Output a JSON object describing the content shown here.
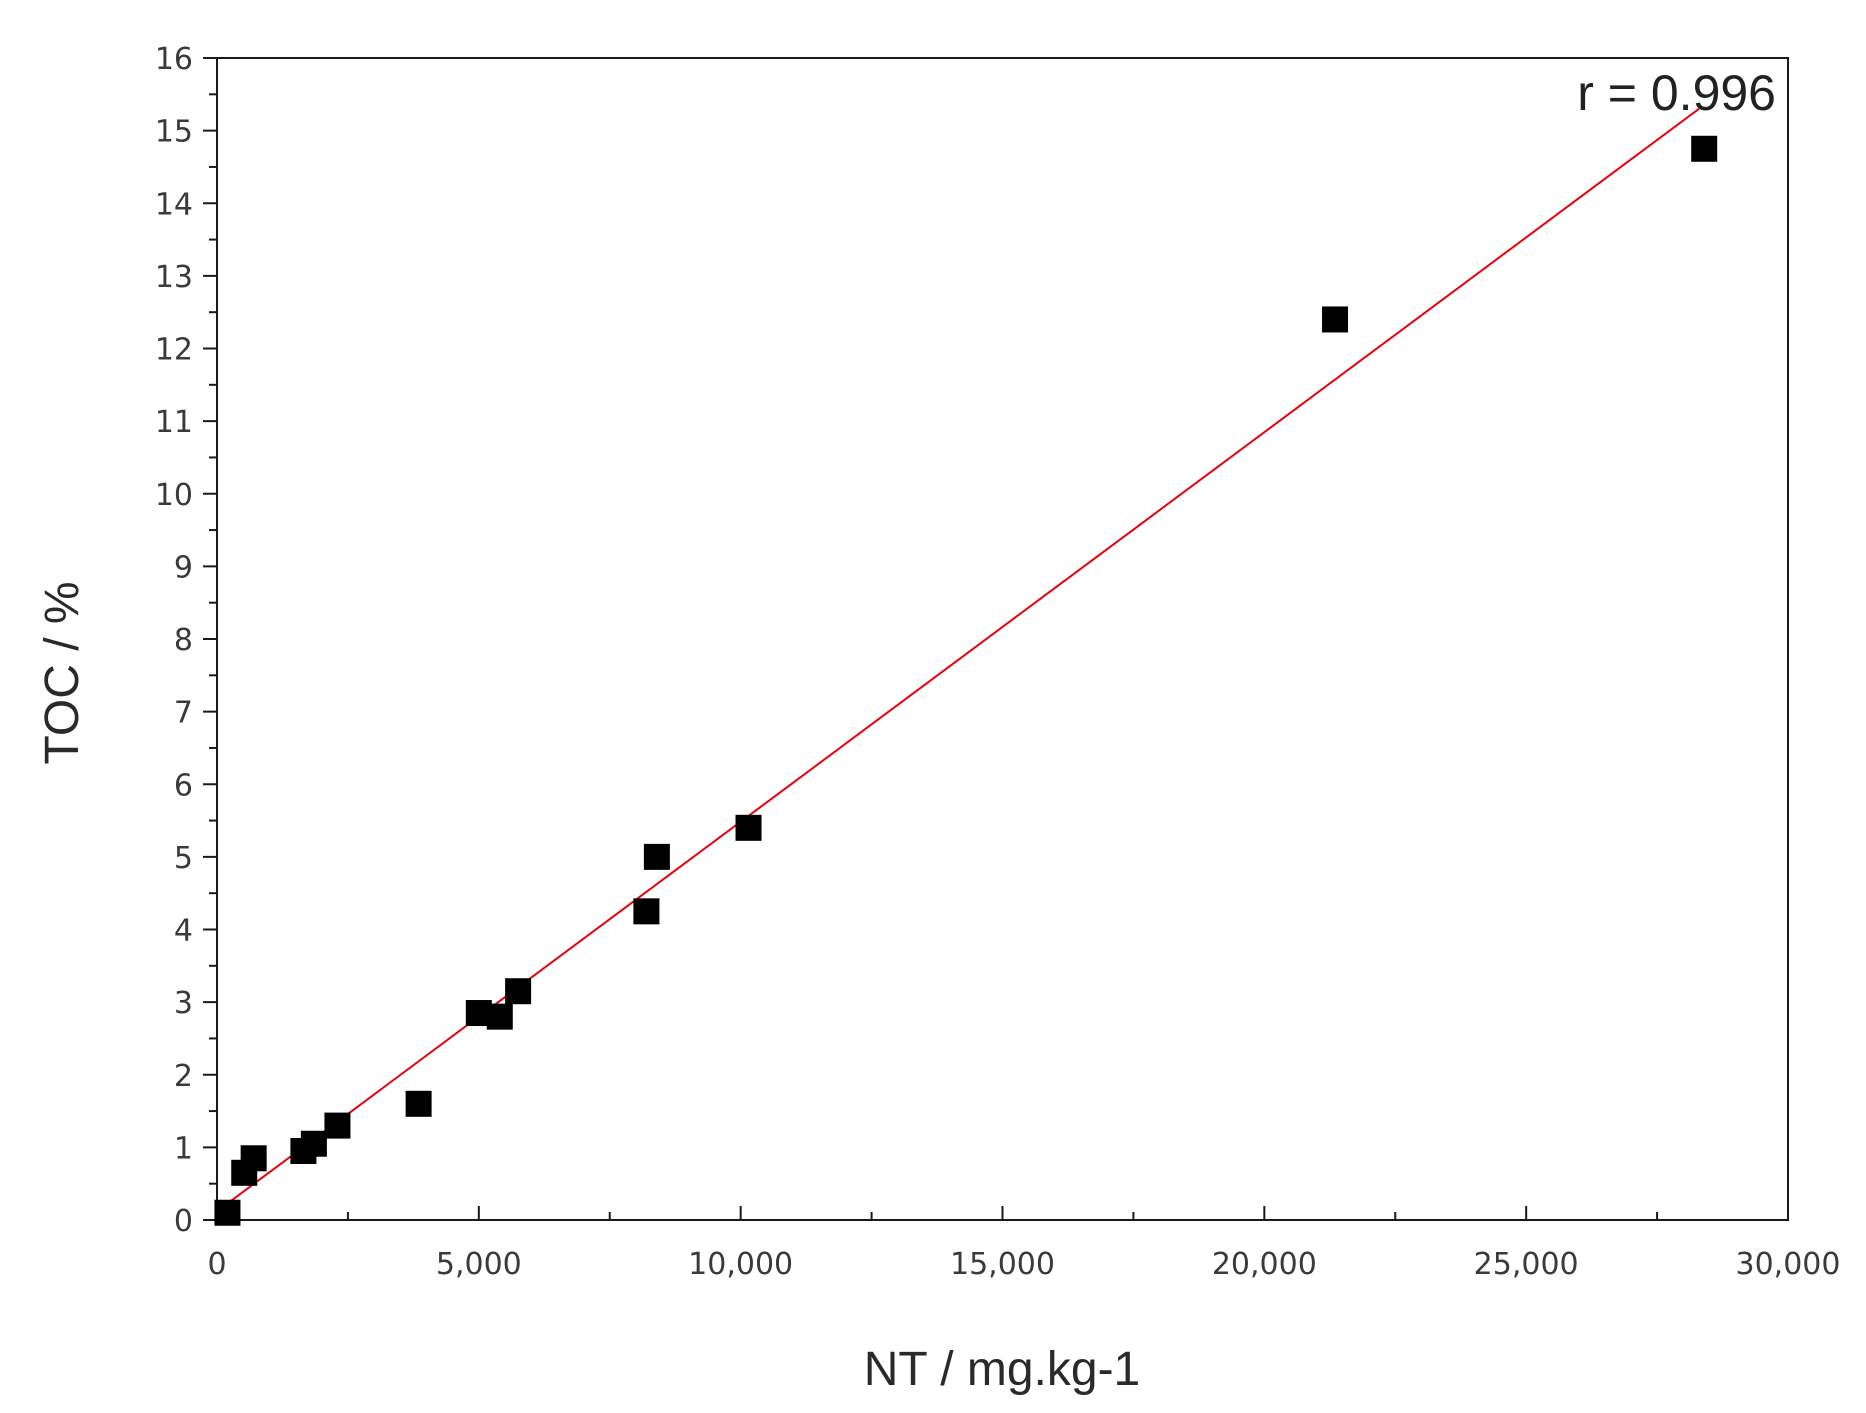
{
  "chart_data": {
    "type": "scatter",
    "xlabel": "NT / mg.kg-1",
    "ylabel": "TOC / %",
    "xlim": [
      0,
      30000
    ],
    "ylim": [
      0,
      16
    ],
    "x_ticks": [
      0,
      5000,
      10000,
      15000,
      20000,
      25000,
      30000
    ],
    "x_tick_labels": [
      "0",
      "5,000",
      "10,000",
      "15,000",
      "20,000",
      "25,000",
      "30,000"
    ],
    "y_ticks": [
      0,
      1,
      2,
      3,
      4,
      5,
      6,
      7,
      8,
      9,
      10,
      11,
      12,
      13,
      14,
      15,
      16
    ],
    "y_tick_labels": [
      "0",
      "1",
      "2",
      "3",
      "4",
      "5",
      "6",
      "7",
      "8",
      "9",
      "10",
      "11",
      "12",
      "13",
      "14",
      "15",
      "16"
    ],
    "grid": false,
    "series": [
      {
        "marker": "square",
        "color": "#000000",
        "points": [
          {
            "x": 200,
            "y": 0.1
          },
          {
            "x": 520,
            "y": 0.65
          },
          {
            "x": 700,
            "y": 0.85
          },
          {
            "x": 1650,
            "y": 0.95
          },
          {
            "x": 1850,
            "y": 1.05
          },
          {
            "x": 2300,
            "y": 1.3
          },
          {
            "x": 3850,
            "y": 1.6
          },
          {
            "x": 5000,
            "y": 2.85
          },
          {
            "x": 5400,
            "y": 2.8
          },
          {
            "x": 5750,
            "y": 3.15
          },
          {
            "x": 8200,
            "y": 4.25
          },
          {
            "x": 8400,
            "y": 5.0
          },
          {
            "x": 10150,
            "y": 5.4
          },
          {
            "x": 21350,
            "y": 12.4
          },
          {
            "x": 28400,
            "y": 14.75
          }
        ]
      }
    ],
    "fit_line": {
      "color": "#e8000b",
      "x": [
        150,
        28300
      ],
      "y": [
        0.2,
        15.3
      ]
    },
    "annotation": "r = 0.996"
  }
}
